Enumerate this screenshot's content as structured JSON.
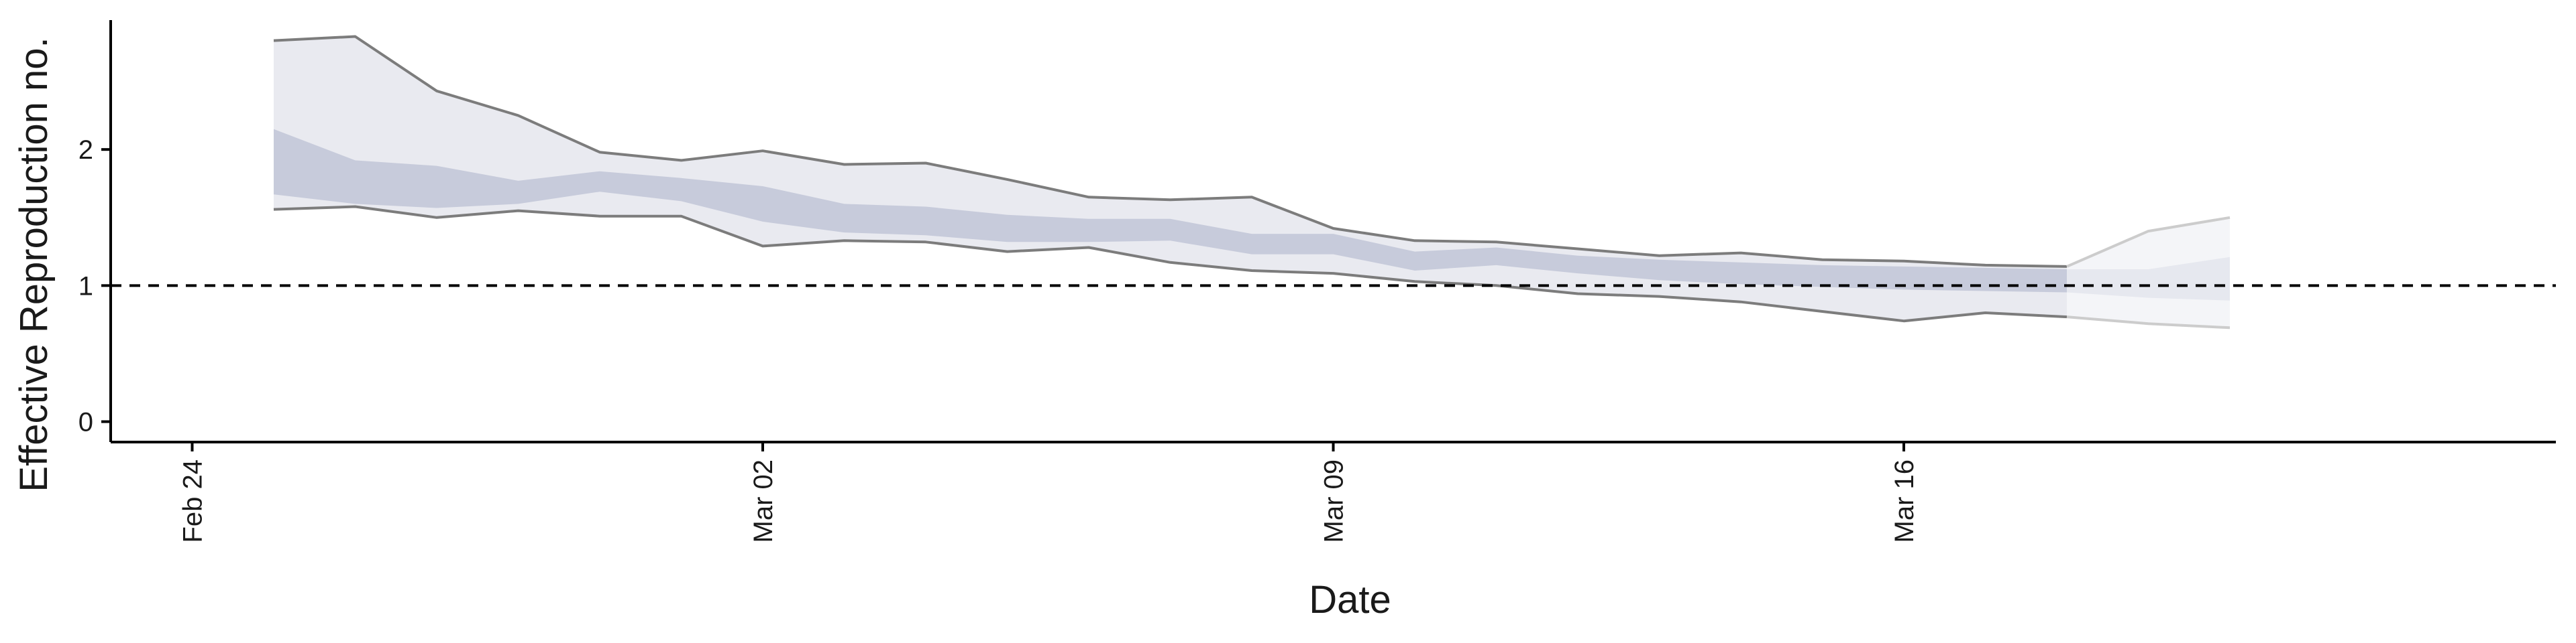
{
  "chart_data": {
    "type": "area",
    "title": "",
    "xlabel": "Date",
    "ylabel": "Effective Reproduction no.",
    "x_tick_labels": [
      "Feb 24",
      "Mar 02",
      "Mar 09",
      "Mar 16"
    ],
    "y_tick_labels": [
      "0",
      "1",
      "2"
    ],
    "ylim": [
      -0.15,
      3.0
    ],
    "xlim": [
      "2020-02-23",
      "2020-03-24"
    ],
    "reference_line": {
      "y": 1,
      "style": "dashed"
    },
    "grid": false,
    "legend": "none",
    "colors": {
      "outer_band": "#e9eaf0",
      "inner_band": "#c7cbdb",
      "outer_band_forecast": "#f4f5f8",
      "inner_band_forecast": "#e6e8ef",
      "outline": "#7c7c7c",
      "outline_forecast": "#cccccc"
    },
    "x": [
      "2020-02-25",
      "2020-02-26",
      "2020-02-27",
      "2020-02-28",
      "2020-02-29",
      "2020-03-01",
      "2020-03-02",
      "2020-03-03",
      "2020-03-04",
      "2020-03-05",
      "2020-03-06",
      "2020-03-07",
      "2020-03-08",
      "2020-03-09",
      "2020-03-10",
      "2020-03-11",
      "2020-03-12",
      "2020-03-13",
      "2020-03-14",
      "2020-03-15",
      "2020-03-16",
      "2020-03-17",
      "2020-03-18",
      "2020-03-19",
      "2020-03-20"
    ],
    "estimate_type": [
      "estimate",
      "estimate",
      "estimate",
      "estimate",
      "estimate",
      "estimate",
      "estimate",
      "estimate",
      "estimate",
      "estimate",
      "estimate",
      "estimate",
      "estimate",
      "estimate",
      "estimate",
      "estimate",
      "estimate",
      "estimate",
      "estimate",
      "estimate",
      "estimate",
      "estimate",
      "estimate",
      "forecast",
      "forecast"
    ],
    "series": [
      {
        "name": "90% CrI upper",
        "values": [
          2.8,
          2.83,
          2.43,
          2.25,
          1.98,
          1.92,
          1.99,
          1.89,
          1.9,
          1.78,
          1.65,
          1.63,
          1.65,
          1.42,
          1.33,
          1.32,
          1.27,
          1.22,
          1.24,
          1.19,
          1.18,
          1.15,
          1.14,
          1.4,
          1.5
        ]
      },
      {
        "name": "50% CrI upper",
        "values": [
          2.15,
          1.92,
          1.88,
          1.77,
          1.84,
          1.79,
          1.73,
          1.6,
          1.58,
          1.52,
          1.49,
          1.49,
          1.38,
          1.38,
          1.25,
          1.28,
          1.22,
          1.19,
          1.17,
          1.15,
          1.14,
          1.13,
          1.12,
          1.12,
          1.21
        ]
      },
      {
        "name": "50% CrI lower",
        "values": [
          1.67,
          1.6,
          1.57,
          1.6,
          1.69,
          1.62,
          1.47,
          1.39,
          1.37,
          1.32,
          1.32,
          1.33,
          1.23,
          1.23,
          1.11,
          1.15,
          1.09,
          1.04,
          1.01,
          0.99,
          0.97,
          0.96,
          0.95,
          0.91,
          0.89
        ]
      },
      {
        "name": "90% CrI lower",
        "values": [
          1.56,
          1.58,
          1.5,
          1.55,
          1.51,
          1.51,
          1.29,
          1.33,
          1.32,
          1.25,
          1.28,
          1.17,
          1.11,
          1.09,
          1.03,
          1.0,
          0.94,
          0.92,
          0.88,
          0.81,
          0.74,
          0.8,
          0.77,
          0.72,
          0.69
        ]
      }
    ]
  }
}
